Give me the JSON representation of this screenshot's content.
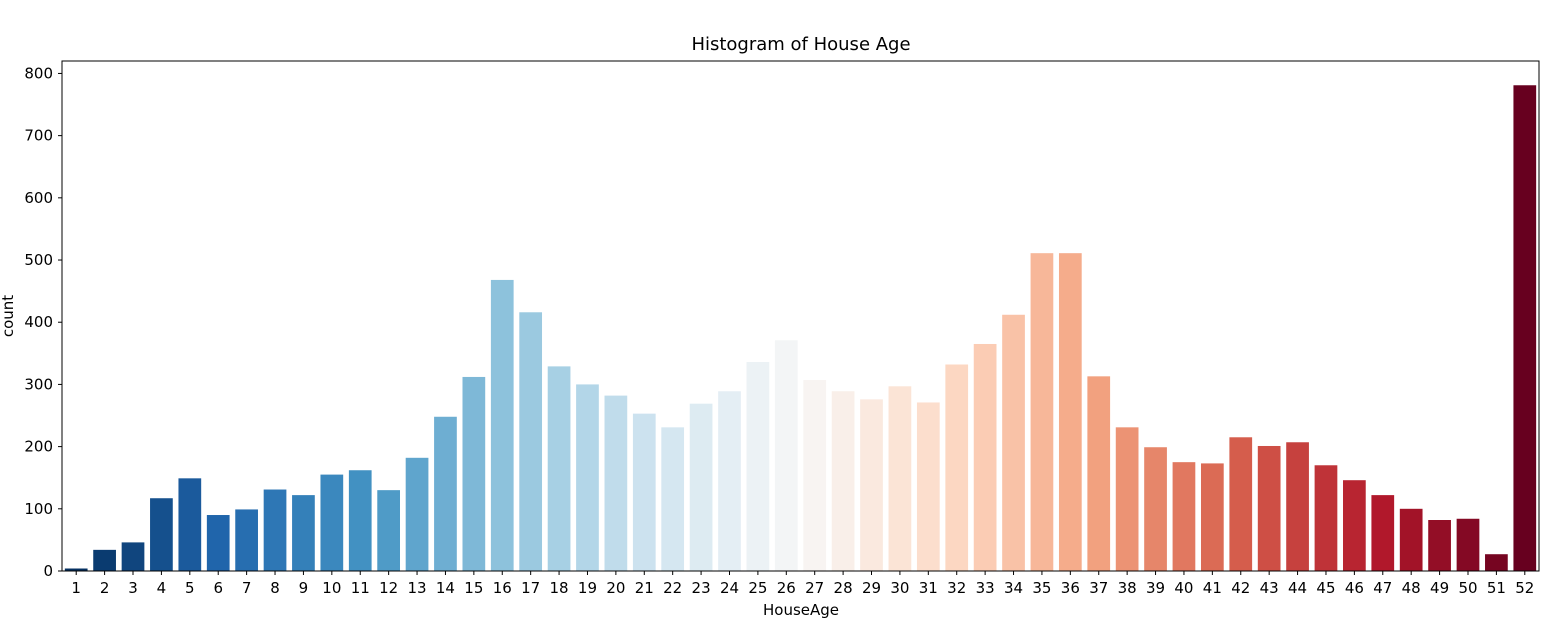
{
  "chart_data": {
    "type": "bar",
    "title": "Histogram of House Age",
    "xlabel": "HouseAge",
    "ylabel": "count",
    "ylim": [
      0,
      820
    ],
    "yticks": [
      0,
      100,
      200,
      300,
      400,
      500,
      600,
      700,
      800
    ],
    "grid": false,
    "colormap": "RdBu_r",
    "categories": [
      "1",
      "2",
      "3",
      "4",
      "5",
      "6",
      "7",
      "8",
      "9",
      "10",
      "11",
      "12",
      "13",
      "14",
      "15",
      "16",
      "17",
      "18",
      "19",
      "20",
      "21",
      "22",
      "23",
      "24",
      "25",
      "26",
      "27",
      "28",
      "29",
      "30",
      "31",
      "32",
      "33",
      "34",
      "35",
      "36",
      "37",
      "38",
      "39",
      "40",
      "41",
      "42",
      "43",
      "44",
      "45",
      "46",
      "47",
      "48",
      "49",
      "50",
      "51",
      "52"
    ],
    "values": [
      4,
      34,
      46,
      117,
      149,
      90,
      99,
      131,
      122,
      155,
      162,
      130,
      182,
      248,
      312,
      468,
      416,
      329,
      300,
      282,
      253,
      231,
      269,
      289,
      336,
      371,
      307,
      289,
      276,
      297,
      271,
      332,
      365,
      412,
      511,
      511,
      313,
      231,
      199,
      175,
      173,
      215,
      201,
      207,
      170,
      146,
      122,
      100,
      82,
      84,
      27,
      781
    ]
  }
}
